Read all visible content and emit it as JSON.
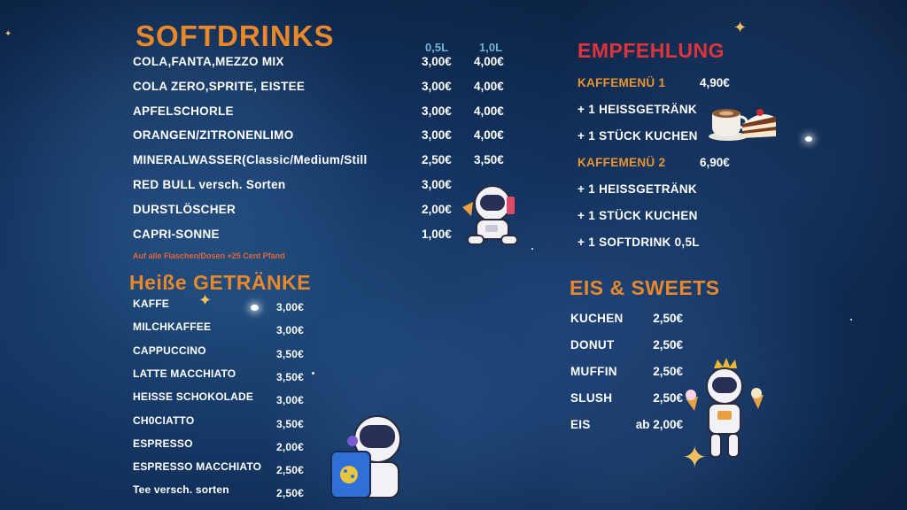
{
  "softdrinks": {
    "title": "SOFTDRINKS",
    "col1": "0,5L",
    "col2": "1,0L",
    "items": [
      {
        "name": "COLA,FANTA,MEZZO MIX",
        "p1": "3,00€",
        "p2": "4,00€"
      },
      {
        "name": "COLA ZERO,SPRITE, EISTEE",
        "p1": "3,00€",
        "p2": "4,00€"
      },
      {
        "name": "APFELSCHORLE",
        "p1": "3,00€",
        "p2": "4,00€"
      },
      {
        "name": "ORANGEN/ZITRONENLIMO",
        "p1": "3,00€",
        "p2": "4,00€"
      },
      {
        "name": "MINERALWASSER(Classic/Medium/Still",
        "p1": "2,50€",
        "p2": "3,50€"
      },
      {
        "name": "RED BULL  versch. Sorten",
        "p1": "3,00€",
        "p2": ""
      },
      {
        "name": "DURSTLÖSCHER",
        "p1": "2,00€",
        "p2": ""
      },
      {
        "name": "CAPRI-SONNE",
        "p1": "1,00€",
        "p2": ""
      }
    ],
    "note": "Auf alle Flaschen/Dosen +25 Cent Pfand"
  },
  "hot": {
    "title": "Heiße GETRÄNKE",
    "items": [
      {
        "name": "KAFFE",
        "price": "3,00€"
      },
      {
        "name": "MILCHKAFFEE",
        "price": "3,00€"
      },
      {
        "name": "CAPPUCCINO",
        "price": "3,50€"
      },
      {
        "name": "LATTE MACCHIATO",
        "price": "3,50€"
      },
      {
        "name": "HEISSE SCHOKOLADE",
        "price": "3,00€"
      },
      {
        "name": "CH0CIATTO",
        "price": "3,50€"
      },
      {
        "name": "ESPRESSO",
        "price": "2,00€"
      },
      {
        "name": "ESPRESSO  MACCHIATO",
        "price": "2,50€"
      },
      {
        "name": "Tee versch. sorten",
        "price": "2,50€"
      }
    ]
  },
  "recommend": {
    "title": "EMPFEHLUNG",
    "menu1": {
      "name": "KAFFEMENÜ 1",
      "price": "4,90€",
      "lines": [
        "+ 1 HEISSGETRÄNK",
        "+ 1 STÜCK KUCHEN"
      ]
    },
    "menu2": {
      "name": "KAFFEMENÜ 2",
      "price": "6,90€",
      "lines": [
        "+ 1 HEISSGETRÄNK",
        "+ 1 STÜCK KUCHEN",
        "+ 1 SOFTDRINK 0,5L"
      ]
    }
  },
  "sweets": {
    "title": "EIS & SWEETS",
    "items": [
      {
        "name": "KUCHEN",
        "price": "2,50€"
      },
      {
        "name": "DONUT",
        "price": "2,50€"
      },
      {
        "name": "MUFFIN",
        "price": "2,50€"
      },
      {
        "name": "SLUSH",
        "price": "2,50€"
      },
      {
        "name": "EIS",
        "price": "ab 2,00€"
      }
    ]
  },
  "colors": {
    "accent": "#e8882a",
    "red": "#e0343c",
    "bg": "#143563"
  }
}
